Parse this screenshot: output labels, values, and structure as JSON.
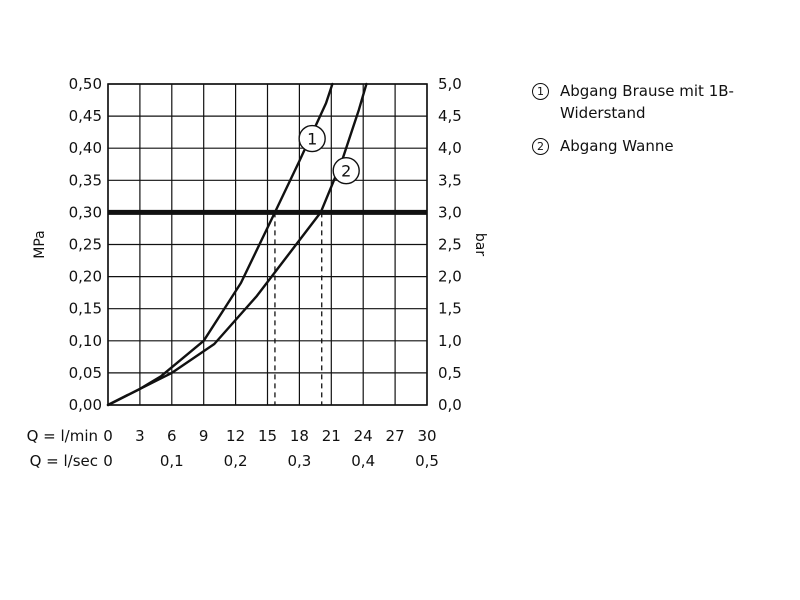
{
  "chart_data": {
    "type": "line",
    "ylabel_left": "MPa",
    "ylabel_right": "bar",
    "ylim": [
      0,
      0.5
    ],
    "xlim": [
      0,
      30
    ],
    "y_ticks_left": [
      "0,00",
      "0,05",
      "0,10",
      "0,15",
      "0,20",
      "0,25",
      "0,30",
      "0,35",
      "0,40",
      "0,45",
      "0,50"
    ],
    "y_ticks_right": [
      "0,0",
      "0,5",
      "1,0",
      "1,5",
      "2,0",
      "2,5",
      "3,0",
      "3,5",
      "4,0",
      "4,5",
      "5,0"
    ],
    "x_row1_label": "Q = l/min",
    "x_row1_ticks": [
      "0",
      "3",
      "6",
      "9",
      "12",
      "15",
      "18",
      "21",
      "24",
      "27",
      "30"
    ],
    "x_row2_label": "Q = l/sec",
    "x_row2_ticks": [
      {
        "x": 0,
        "label": "0"
      },
      {
        "x": 6,
        "label": "0,1"
      },
      {
        "x": 12,
        "label": "0,2"
      },
      {
        "x": 18,
        "label": "0,3"
      },
      {
        "x": 24,
        "label": "0,4"
      },
      {
        "x": 30,
        "label": "0,5"
      }
    ],
    "reference_line": {
      "y": 0.3
    },
    "grid": true,
    "legend_position": "right",
    "series": [
      {
        "name": "Abgang Brause mit 1B-Widerstand",
        "marker": "1",
        "x": [
          0,
          3,
          5,
          9,
          12.5,
          15.7,
          18,
          20.5,
          21.1
        ],
        "y": [
          0,
          0.025,
          0.045,
          0.1,
          0.19,
          0.3,
          0.38,
          0.47,
          0.5
        ],
        "label_at": {
          "x": 19.2,
          "y": 0.415
        },
        "drop_x": 15.7
      },
      {
        "name": "Abgang Wanne",
        "marker": "2",
        "x": [
          0,
          3,
          6,
          10,
          14,
          17,
          20,
          22,
          23.6,
          24.3
        ],
        "y": [
          0,
          0.025,
          0.05,
          0.095,
          0.17,
          0.235,
          0.3,
          0.38,
          0.46,
          0.5
        ],
        "label_at": {
          "x": 22.4,
          "y": 0.365
        },
        "drop_x": 20.1
      }
    ]
  },
  "legend": {
    "items": [
      {
        "num": "1",
        "text": "Abgang Brause mit 1B-Widerstand"
      },
      {
        "num": "2",
        "text": "Abgang Wanne"
      }
    ]
  }
}
